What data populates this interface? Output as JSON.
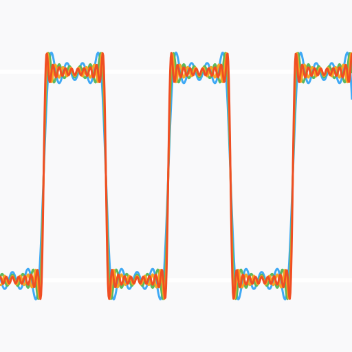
{
  "chart_data": {
    "type": "line",
    "title": "",
    "xlabel": "",
    "ylabel": "",
    "grid": true,
    "legend": "none",
    "xlim": [
      -1.1,
      4.55
    ],
    "ylim": [
      -1.69,
      1.69
    ],
    "square_wave": {
      "period": 2.0,
      "high": 1,
      "low": -1,
      "rising_edges": [
        1.6,
        3.6
      ],
      "falling_edges": [
        0.6,
        2.6,
        4.6
      ]
    },
    "gridlines_y": [
      -1,
      1
    ],
    "series": [
      {
        "color": "#3fa9f5",
        "harmonics": 7,
        "samples": 600
      },
      {
        "color": "#5cb85c",
        "harmonics": 11,
        "samples": 600
      },
      {
        "color": "#f5a623",
        "harmonics": 15,
        "samples": 600
      },
      {
        "color": "#f04e23",
        "harmonics": 19,
        "samples": 600
      }
    ]
  }
}
